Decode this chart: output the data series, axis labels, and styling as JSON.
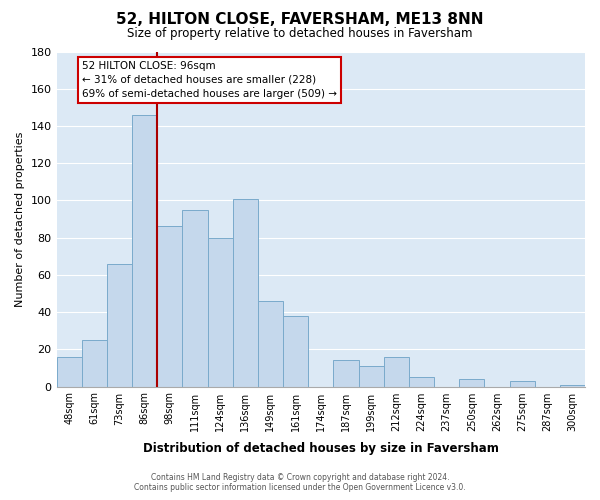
{
  "title": "52, HILTON CLOSE, FAVERSHAM, ME13 8NN",
  "subtitle": "Size of property relative to detached houses in Faversham",
  "xlabel": "Distribution of detached houses by size in Faversham",
  "ylabel": "Number of detached properties",
  "footer_line1": "Contains HM Land Registry data © Crown copyright and database right 2024.",
  "footer_line2": "Contains public sector information licensed under the Open Government Licence v3.0.",
  "bin_labels": [
    "48sqm",
    "61sqm",
    "73sqm",
    "86sqm",
    "98sqm",
    "111sqm",
    "124sqm",
    "136sqm",
    "149sqm",
    "161sqm",
    "174sqm",
    "187sqm",
    "199sqm",
    "212sqm",
    "224sqm",
    "237sqm",
    "250sqm",
    "262sqm",
    "275sqm",
    "287sqm",
    "300sqm"
  ],
  "bar_heights": [
    16,
    25,
    66,
    146,
    86,
    95,
    80,
    101,
    46,
    38,
    0,
    14,
    11,
    16,
    5,
    0,
    4,
    0,
    3,
    0,
    1
  ],
  "bar_color": "#c5d8ec",
  "bar_edge_color": "#7aaacb",
  "marker_line_index": 4,
  "marker_color": "#aa0000",
  "ylim": [
    0,
    180
  ],
  "yticks": [
    0,
    20,
    40,
    60,
    80,
    100,
    120,
    140,
    160,
    180
  ],
  "annotation_title": "52 HILTON CLOSE: 96sqm",
  "annotation_line1": "← 31% of detached houses are smaller (228)",
  "annotation_line2": "69% of semi-detached houses are larger (509) →",
  "annotation_box_facecolor": "#ffffff",
  "annotation_box_edgecolor": "#cc0000",
  "background_color": "#dce9f5",
  "grid_color": "#ffffff",
  "spine_color": "#aaaaaa"
}
